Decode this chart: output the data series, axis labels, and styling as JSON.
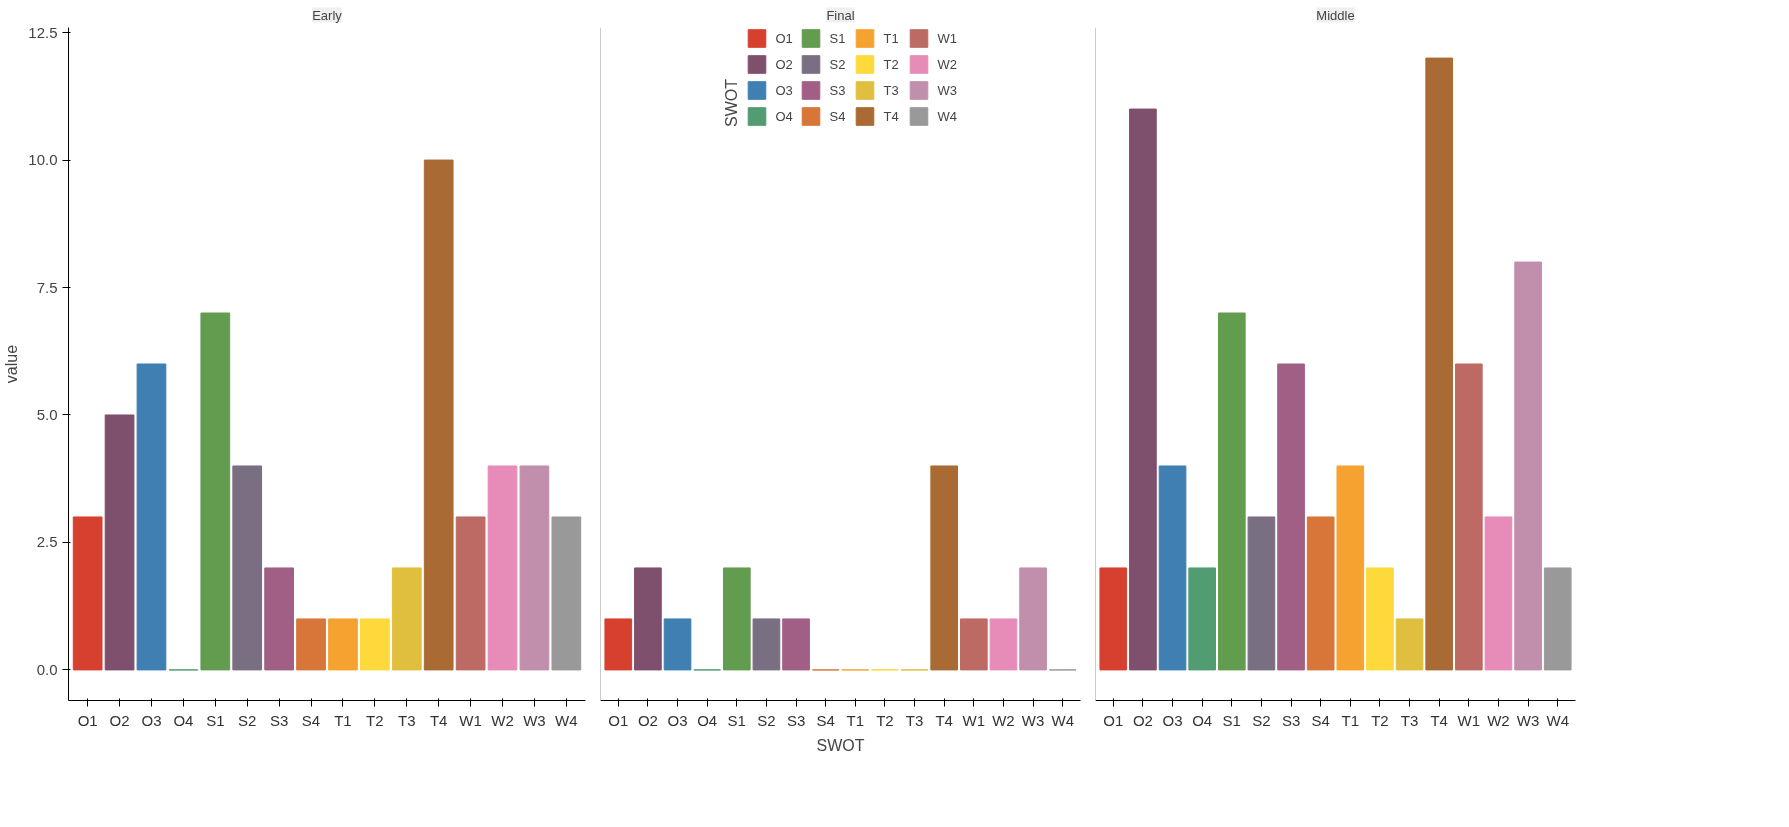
{
  "chart_data": [
    {
      "type": "bar",
      "title": "Early",
      "ylabel": "value",
      "grid": false,
      "categories": [
        "O1",
        "O2",
        "O3",
        "O4",
        "S1",
        "S2",
        "S3",
        "S4",
        "T1",
        "T2",
        "T3",
        "T4",
        "W1",
        "W2",
        "W3",
        "W4"
      ],
      "ylim": [
        -0.6,
        12.6
      ],
      "yticks": [
        {
          "value": 0,
          "label": "0.0"
        },
        {
          "value": 2.5,
          "label": "2.5"
        },
        {
          "value": 5,
          "label": "5.0"
        },
        {
          "value": 7.5,
          "label": "7.5"
        },
        {
          "value": 10,
          "label": "10.0"
        },
        {
          "value": 12.5,
          "label": "12.5"
        }
      ],
      "series": [
        {
          "color": "#d6412f",
          "values": [
            3,
            null,
            null,
            null,
            null,
            null,
            null,
            null,
            null,
            null,
            null,
            null,
            null,
            null,
            null,
            null
          ]
        },
        {
          "color": "#7f4f6e",
          "values": [
            null,
            5,
            null,
            null,
            null,
            null,
            null,
            null,
            null,
            null,
            null,
            null,
            null,
            null,
            null,
            null
          ]
        },
        {
          "color": "#3f7fb1",
          "values": [
            null,
            null,
            6,
            null,
            null,
            null,
            null,
            null,
            null,
            null,
            null,
            null,
            null,
            null,
            null,
            null
          ]
        },
        {
          "color": "#529c72",
          "values": [
            null,
            null,
            null,
            0,
            null,
            null,
            null,
            null,
            null,
            null,
            null,
            null,
            null,
            null,
            null,
            null
          ]
        },
        {
          "color": "#629c4f",
          "values": [
            null,
            null,
            null,
            null,
            7,
            null,
            null,
            null,
            null,
            null,
            null,
            null,
            null,
            null,
            null,
            null
          ]
        },
        {
          "color": "#7a6e82",
          "values": [
            null,
            null,
            null,
            null,
            null,
            4,
            null,
            null,
            null,
            null,
            null,
            null,
            null,
            null,
            null,
            null
          ]
        },
        {
          "color": "#a15f86",
          "values": [
            null,
            null,
            null,
            null,
            null,
            null,
            2,
            null,
            null,
            null,
            null,
            null,
            null,
            null,
            null,
            null
          ]
        },
        {
          "color": "#d8763a",
          "values": [
            null,
            null,
            null,
            null,
            null,
            null,
            null,
            1,
            null,
            null,
            null,
            null,
            null,
            null,
            null,
            null
          ]
        },
        {
          "color": "#f5a231",
          "values": [
            null,
            null,
            null,
            null,
            null,
            null,
            null,
            null,
            1,
            null,
            null,
            null,
            null,
            null,
            null,
            null
          ]
        },
        {
          "color": "#fdd93b",
          "values": [
            null,
            null,
            null,
            null,
            null,
            null,
            null,
            null,
            null,
            1,
            null,
            null,
            null,
            null,
            null,
            null
          ]
        },
        {
          "color": "#dfbf3d",
          "values": [
            null,
            null,
            null,
            null,
            null,
            null,
            null,
            null,
            null,
            null,
            2,
            null,
            null,
            null,
            null,
            null
          ]
        },
        {
          "color": "#a96b33",
          "values": [
            null,
            null,
            null,
            null,
            null,
            null,
            null,
            null,
            null,
            null,
            null,
            10,
            null,
            null,
            null,
            null
          ]
        },
        {
          "color": "#bd6a64",
          "values": [
            null,
            null,
            null,
            null,
            null,
            null,
            null,
            null,
            null,
            null,
            null,
            null,
            3,
            null,
            null,
            null
          ]
        },
        {
          "color": "#e78bb9",
          "values": [
            null,
            null,
            null,
            null,
            null,
            null,
            null,
            null,
            null,
            null,
            null,
            null,
            null,
            4,
            null,
            null
          ]
        },
        {
          "color": "#c18fab",
          "values": [
            null,
            null,
            null,
            null,
            null,
            null,
            null,
            null,
            null,
            null,
            null,
            null,
            null,
            null,
            4,
            null
          ]
        },
        {
          "color": "#999999",
          "values": [
            null,
            null,
            null,
            null,
            null,
            null,
            null,
            null,
            null,
            null,
            null,
            null,
            null,
            null,
            null,
            3
          ]
        }
      ]
    },
    {
      "type": "bar",
      "title": "Final",
      "xlabel": "SWOT",
      "grid": false,
      "tick_labels": "x",
      "legend": "top",
      "legend_title": "SWOT",
      "categories": [
        "O1",
        "O2",
        "O3",
        "O4",
        "S1",
        "S2",
        "S3",
        "S4",
        "T1",
        "T2",
        "T3",
        "T4",
        "W1",
        "W2",
        "W3",
        "W4"
      ],
      "ylim": [
        -0.6,
        12.6
      ],
      "series": [
        {
          "name": "O1",
          "color": "#d6412f",
          "values": [
            1,
            null,
            null,
            null,
            null,
            null,
            null,
            null,
            null,
            null,
            null,
            null,
            null,
            null,
            null,
            null
          ]
        },
        {
          "name": "O2",
          "color": "#7f4f6e",
          "values": [
            null,
            2,
            null,
            null,
            null,
            null,
            null,
            null,
            null,
            null,
            null,
            null,
            null,
            null,
            null,
            null
          ]
        },
        {
          "name": "O3",
          "color": "#3f7fb1",
          "values": [
            null,
            null,
            1,
            null,
            null,
            null,
            null,
            null,
            null,
            null,
            null,
            null,
            null,
            null,
            null,
            null
          ]
        },
        {
          "name": "O4",
          "color": "#529c72",
          "values": [
            null,
            null,
            null,
            0,
            null,
            null,
            null,
            null,
            null,
            null,
            null,
            null,
            null,
            null,
            null,
            null
          ]
        },
        {
          "name": "S1",
          "color": "#629c4f",
          "values": [
            null,
            null,
            null,
            null,
            2,
            null,
            null,
            null,
            null,
            null,
            null,
            null,
            null,
            null,
            null,
            null
          ]
        },
        {
          "name": "S2",
          "color": "#7a6e82",
          "values": [
            null,
            null,
            null,
            null,
            null,
            1,
            null,
            null,
            null,
            null,
            null,
            null,
            null,
            null,
            null,
            null
          ]
        },
        {
          "name": "S3",
          "color": "#a15f86",
          "values": [
            null,
            null,
            null,
            null,
            null,
            null,
            1,
            null,
            null,
            null,
            null,
            null,
            null,
            null,
            null,
            null
          ]
        },
        {
          "name": "S4",
          "color": "#d8763a",
          "values": [
            null,
            null,
            null,
            null,
            null,
            null,
            null,
            0,
            null,
            null,
            null,
            null,
            null,
            null,
            null,
            null
          ]
        },
        {
          "name": "T1",
          "color": "#f5a231",
          "values": [
            null,
            null,
            null,
            null,
            null,
            null,
            null,
            null,
            0,
            null,
            null,
            null,
            null,
            null,
            null,
            null
          ]
        },
        {
          "name": "T2",
          "color": "#fdd93b",
          "values": [
            null,
            null,
            null,
            null,
            null,
            null,
            null,
            null,
            null,
            0,
            null,
            null,
            null,
            null,
            null,
            null
          ]
        },
        {
          "name": "T3",
          "color": "#dfbf3d",
          "values": [
            null,
            null,
            null,
            null,
            null,
            null,
            null,
            null,
            null,
            null,
            0,
            null,
            null,
            null,
            null,
            null
          ]
        },
        {
          "name": "T4",
          "color": "#a96b33",
          "values": [
            null,
            null,
            null,
            null,
            null,
            null,
            null,
            null,
            null,
            null,
            null,
            4,
            null,
            null,
            null,
            null
          ]
        },
        {
          "name": "W1",
          "color": "#bd6a64",
          "values": [
            null,
            null,
            null,
            null,
            null,
            null,
            null,
            null,
            null,
            null,
            null,
            null,
            1,
            null,
            null,
            null
          ]
        },
        {
          "name": "W2",
          "color": "#e78bb9",
          "values": [
            null,
            null,
            null,
            null,
            null,
            null,
            null,
            null,
            null,
            null,
            null,
            null,
            null,
            1,
            null,
            null
          ]
        },
        {
          "name": "W3",
          "color": "#c18fab",
          "values": [
            null,
            null,
            null,
            null,
            null,
            null,
            null,
            null,
            null,
            null,
            null,
            null,
            null,
            null,
            2,
            null
          ]
        },
        {
          "name": "W4",
          "color": "#999999",
          "values": [
            null,
            null,
            null,
            null,
            null,
            null,
            null,
            null,
            null,
            null,
            null,
            null,
            null,
            null,
            null,
            0
          ]
        }
      ]
    },
    {
      "type": "bar",
      "title": "Middle",
      "grid": false,
      "tick_labels": "x",
      "categories": [
        "O1",
        "O2",
        "O3",
        "O4",
        "S1",
        "S2",
        "S3",
        "S4",
        "T1",
        "T2",
        "T3",
        "T4",
        "W1",
        "W2",
        "W3",
        "W4"
      ],
      "ylim": [
        -0.6,
        12.6
      ],
      "series": [
        {
          "color": "#d6412f",
          "values": [
            2,
            null,
            null,
            null,
            null,
            null,
            null,
            null,
            null,
            null,
            null,
            null,
            null,
            null,
            null,
            null
          ]
        },
        {
          "color": "#7f4f6e",
          "values": [
            null,
            11,
            null,
            null,
            null,
            null,
            null,
            null,
            null,
            null,
            null,
            null,
            null,
            null,
            null,
            null
          ]
        },
        {
          "color": "#3f7fb1",
          "values": [
            null,
            null,
            4,
            null,
            null,
            null,
            null,
            null,
            null,
            null,
            null,
            null,
            null,
            null,
            null,
            null
          ]
        },
        {
          "color": "#529c72",
          "values": [
            null,
            null,
            null,
            2,
            null,
            null,
            null,
            null,
            null,
            null,
            null,
            null,
            null,
            null,
            null,
            null
          ]
        },
        {
          "color": "#629c4f",
          "values": [
            null,
            null,
            null,
            null,
            7,
            null,
            null,
            null,
            null,
            null,
            null,
            null,
            null,
            null,
            null,
            null
          ]
        },
        {
          "color": "#7a6e82",
          "values": [
            null,
            null,
            null,
            null,
            null,
            3,
            null,
            null,
            null,
            null,
            null,
            null,
            null,
            null,
            null,
            null
          ]
        },
        {
          "color": "#a15f86",
          "values": [
            null,
            null,
            null,
            null,
            null,
            null,
            6,
            null,
            null,
            null,
            null,
            null,
            null,
            null,
            null,
            null
          ]
        },
        {
          "color": "#d8763a",
          "values": [
            null,
            null,
            null,
            null,
            null,
            null,
            null,
            3,
            null,
            null,
            null,
            null,
            null,
            null,
            null,
            null
          ]
        },
        {
          "color": "#f5a231",
          "values": [
            null,
            null,
            null,
            null,
            null,
            null,
            null,
            null,
            4,
            null,
            null,
            null,
            null,
            null,
            null,
            null
          ]
        },
        {
          "color": "#fdd93b",
          "values": [
            null,
            null,
            null,
            null,
            null,
            null,
            null,
            null,
            null,
            2,
            null,
            null,
            null,
            null,
            null,
            null
          ]
        },
        {
          "color": "#dfbf3d",
          "values": [
            null,
            null,
            null,
            null,
            null,
            null,
            null,
            null,
            null,
            null,
            1,
            null,
            null,
            null,
            null,
            null
          ]
        },
        {
          "color": "#a96b33",
          "values": [
            null,
            null,
            null,
            null,
            null,
            null,
            null,
            null,
            null,
            null,
            null,
            12,
            null,
            null,
            null,
            null
          ]
        },
        {
          "color": "#bd6a64",
          "values": [
            null,
            null,
            null,
            null,
            null,
            null,
            null,
            null,
            null,
            null,
            null,
            null,
            6,
            null,
            null,
            null
          ]
        },
        {
          "color": "#e78bb9",
          "values": [
            null,
            null,
            null,
            null,
            null,
            null,
            null,
            null,
            null,
            null,
            null,
            null,
            null,
            3,
            null,
            null
          ]
        },
        {
          "color": "#c18fab",
          "values": [
            null,
            null,
            null,
            null,
            null,
            null,
            null,
            null,
            null,
            null,
            null,
            null,
            null,
            null,
            8,
            null
          ]
        },
        {
          "color": "#999999",
          "values": [
            null,
            null,
            null,
            null,
            null,
            null,
            null,
            null,
            null,
            null,
            null,
            null,
            null,
            null,
            null,
            2
          ]
        }
      ]
    }
  ]
}
